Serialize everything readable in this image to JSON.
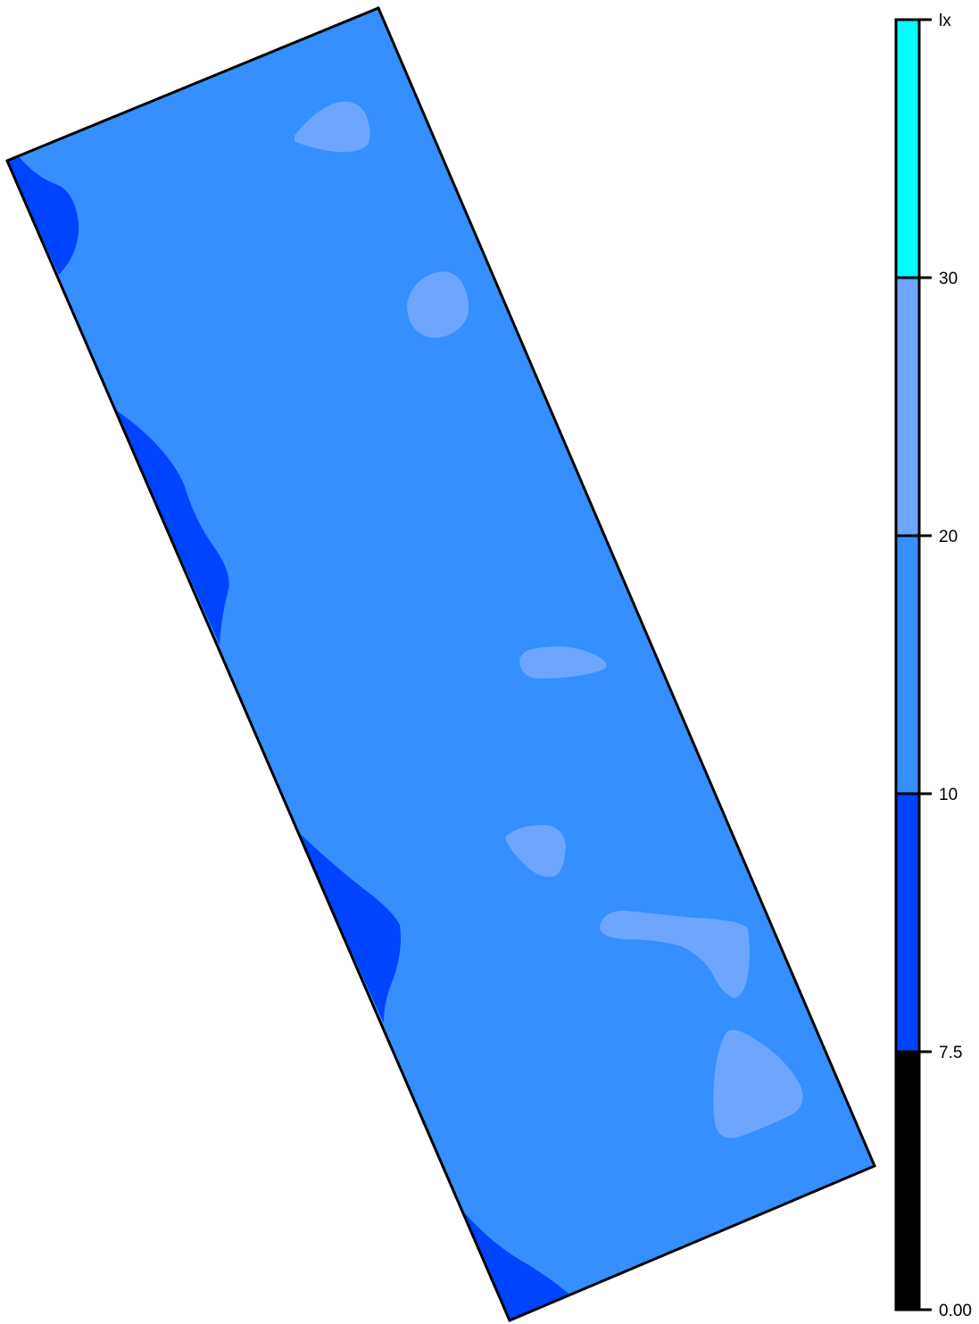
{
  "legend": {
    "unit": "lx",
    "bands": [
      {
        "from": 0.0,
        "to": 7.5,
        "color": "#000000",
        "bottom_label": "0.00"
      },
      {
        "from": 7.5,
        "to": 10,
        "color": "#0044ff",
        "bottom_label": "7.5"
      },
      {
        "from": 10,
        "to": 20,
        "color": "#368fff",
        "bottom_label": "10"
      },
      {
        "from": 20,
        "to": 30,
        "color": "#6ea6ff",
        "bottom_label": "20"
      },
      {
        "from": 30,
        "to": null,
        "color": "#00ffff",
        "bottom_label": "30"
      }
    ]
  },
  "colors": {
    "base": "#368fff",
    "low": "#0044ff",
    "high": "#6ea6ff",
    "outline": "#000000"
  }
}
